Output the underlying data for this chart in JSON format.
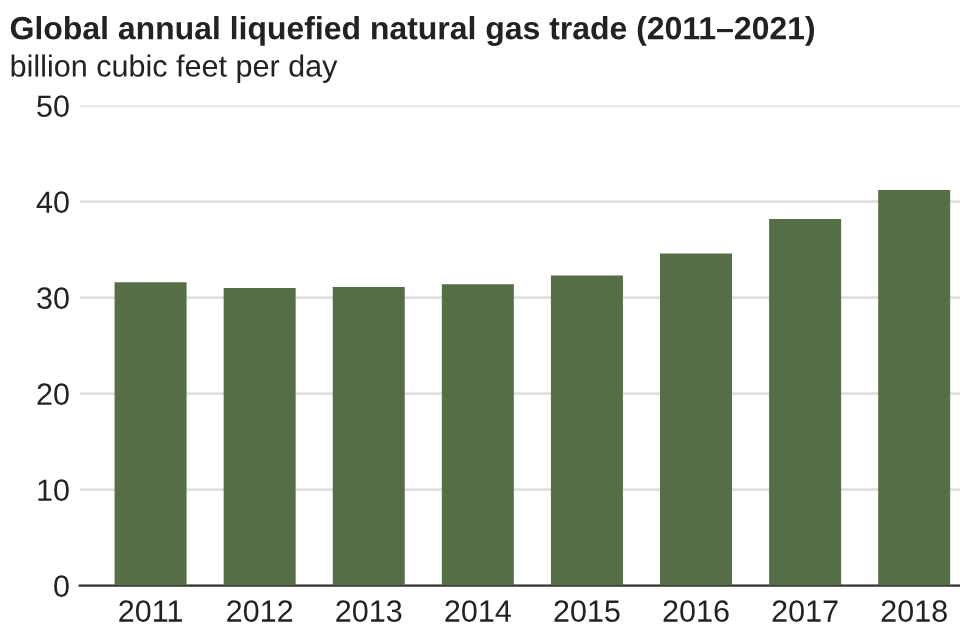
{
  "chart_data": {
    "type": "bar",
    "title": "Global annual liquefied natural gas trade (2011–2021)",
    "subtitle": "billion cubic feet per day",
    "categories": [
      "2011",
      "2012",
      "2013",
      "2014",
      "2015",
      "2016",
      "2017",
      "2018"
    ],
    "values": [
      31.6,
      31.0,
      31.1,
      31.4,
      32.3,
      34.6,
      38.2,
      41.2
    ],
    "color": "#556e45",
    "ylim": [
      0,
      50
    ],
    "yticks": [
      0,
      10,
      20,
      30,
      40,
      50
    ],
    "grid": "y",
    "legend": false
  }
}
